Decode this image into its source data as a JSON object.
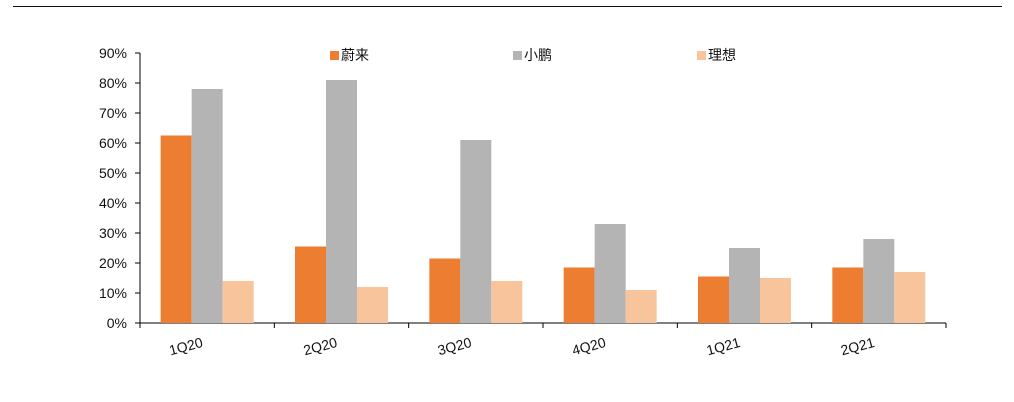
{
  "chart_data": {
    "type": "bar",
    "categories": [
      "1Q20",
      "2Q20",
      "3Q20",
      "4Q20",
      "1Q21",
      "2Q21"
    ],
    "series": [
      {
        "name": "蔚来",
        "color": "#ED7D31",
        "values": [
          62.5,
          25.5,
          21.5,
          18.5,
          15.5,
          18.5
        ]
      },
      {
        "name": "小鹏",
        "color": "#B4B4B4",
        "values": [
          78,
          81,
          61,
          33,
          25,
          28
        ]
      },
      {
        "name": "理想",
        "color": "#F8C49C",
        "values": [
          14,
          12,
          14,
          11,
          15,
          17
        ]
      }
    ],
    "y_ticks": [
      "0%",
      "10%",
      "20%",
      "30%",
      "40%",
      "50%",
      "60%",
      "70%",
      "80%",
      "90%"
    ],
    "ylim": [
      0,
      90
    ],
    "y_unit": "%",
    "grid": false,
    "legend_position": "top"
  }
}
